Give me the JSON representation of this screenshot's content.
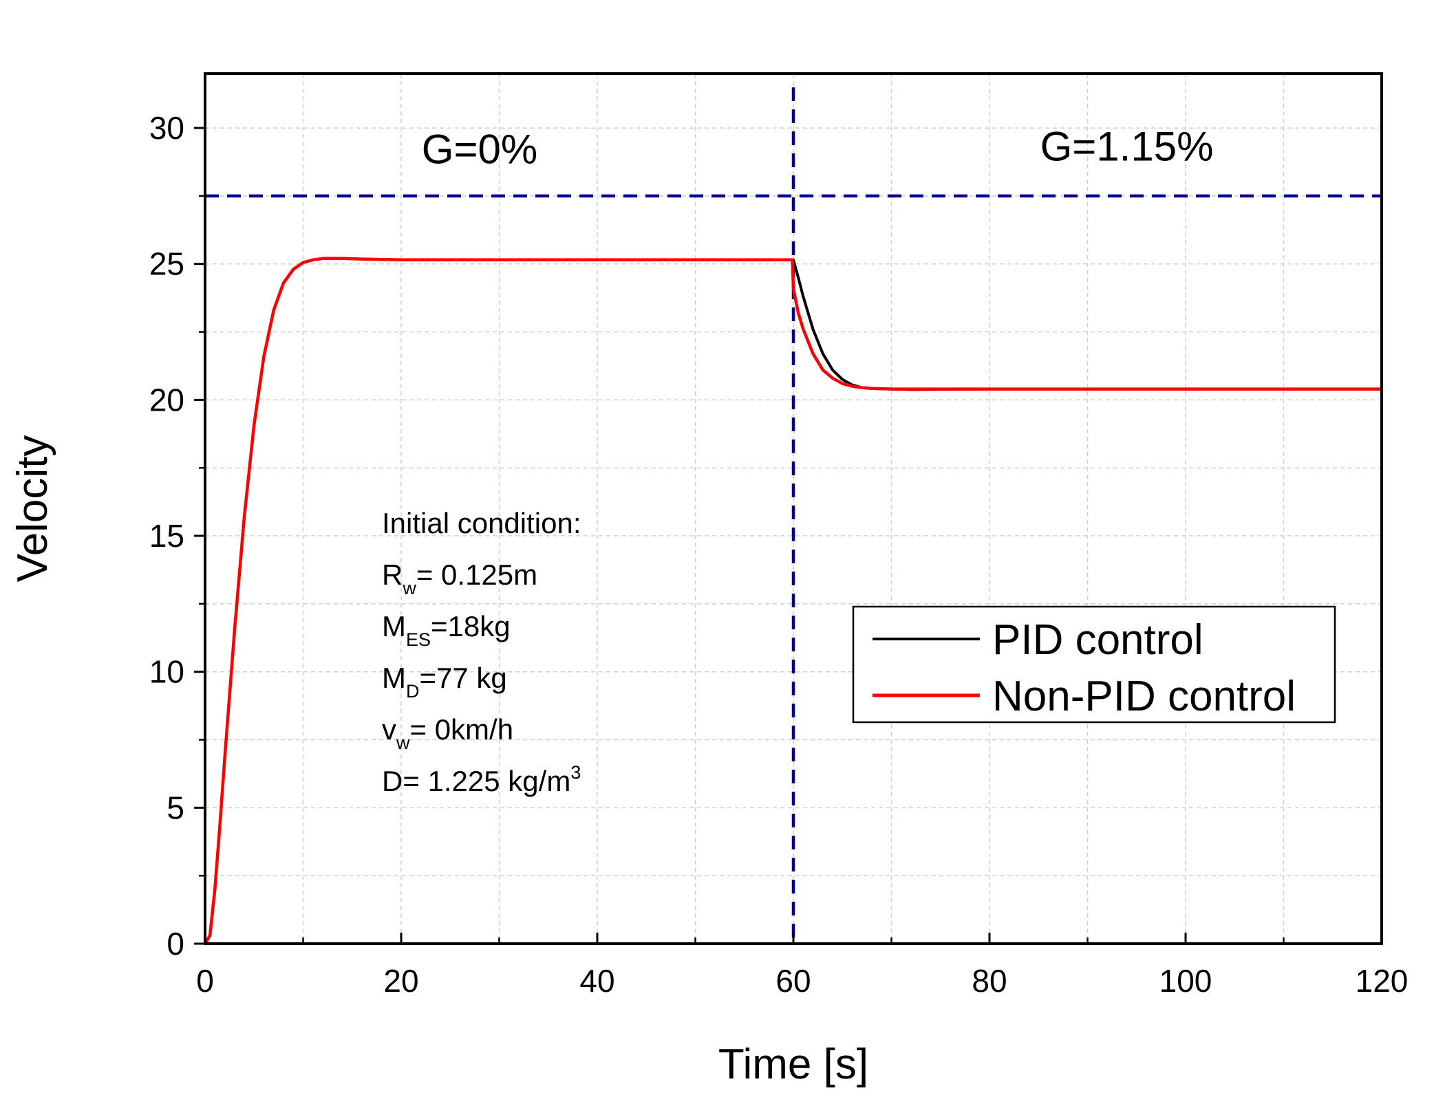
{
  "chart_data": {
    "type": "line",
    "title": "",
    "xlabel": "Time [s]",
    "ylabel": "Velocity",
    "xlim": [
      0,
      120
    ],
    "ylim": [
      0,
      32
    ],
    "x_ticks": [
      0,
      20,
      40,
      60,
      80,
      100,
      120
    ],
    "y_ticks": [
      0,
      5,
      10,
      15,
      20,
      25,
      30
    ],
    "x_tick_labels": [
      "0",
      "20",
      "40",
      "60",
      "80",
      "100",
      "120"
    ],
    "y_tick_labels": [
      "0",
      "5",
      "10",
      "15",
      "20",
      "25",
      "30"
    ],
    "grid": true,
    "series": [
      {
        "name": "PID control",
        "color": "#000000",
        "x": [
          0,
          0.5,
          1,
          1.5,
          2,
          3,
          4,
          5,
          6,
          7,
          8,
          9,
          10,
          11,
          12,
          13,
          14,
          16,
          20,
          30,
          40,
          50,
          59.9,
          60,
          60.5,
          61,
          62,
          63,
          64,
          65,
          66,
          67,
          68,
          70,
          72,
          80,
          90,
          100,
          110,
          120
        ],
        "y": [
          0,
          0.3,
          2.0,
          4.3,
          6.8,
          11.5,
          15.7,
          19.1,
          21.6,
          23.3,
          24.3,
          24.8,
          25.05,
          25.15,
          25.2,
          25.2,
          25.2,
          25.18,
          25.15,
          25.15,
          25.15,
          25.15,
          25.15,
          25.15,
          24.5,
          23.8,
          22.6,
          21.7,
          21.1,
          20.75,
          20.55,
          20.45,
          20.42,
          20.4,
          20.38,
          20.4,
          20.4,
          20.4,
          20.4,
          20.4
        ]
      },
      {
        "name": "Non-PID control",
        "color": "#ff0000",
        "x": [
          0,
          0.5,
          1,
          1.5,
          2,
          3,
          4,
          5,
          6,
          7,
          8,
          9,
          10,
          11,
          12,
          13,
          14,
          16,
          20,
          30,
          40,
          50,
          59.9,
          60,
          60.5,
          61,
          62,
          63,
          64,
          65,
          66,
          67,
          68,
          70,
          72,
          80,
          90,
          100,
          110,
          120
        ],
        "y": [
          0,
          0.3,
          2.0,
          4.3,
          6.8,
          11.5,
          15.7,
          19.1,
          21.6,
          23.3,
          24.3,
          24.8,
          25.05,
          25.15,
          25.2,
          25.2,
          25.2,
          25.18,
          25.15,
          25.15,
          25.15,
          25.15,
          25.15,
          24.1,
          23.2,
          22.6,
          21.7,
          21.1,
          20.8,
          20.6,
          20.5,
          20.45,
          20.42,
          20.4,
          20.4,
          20.4,
          20.4,
          20.4,
          20.4,
          20.4
        ]
      }
    ],
    "reference_lines": [
      {
        "orientation": "horizontal",
        "value": 27.5,
        "color": "#000099",
        "style": "dashed"
      },
      {
        "orientation": "vertical",
        "value": 60,
        "color": "#000099",
        "style": "dashed"
      }
    ],
    "region_labels": [
      {
        "text": "G=0%",
        "x": 28,
        "y": 28.7
      },
      {
        "text": "G=1.15%",
        "x": 94,
        "y": 28.8
      }
    ],
    "legend": {
      "position": "center-right",
      "entries": [
        "PID control",
        "Non-PID control"
      ]
    },
    "annotation": {
      "position": "middle-left",
      "lines": [
        {
          "id": "heading",
          "parts": [
            {
              "t": "Initial condition:"
            }
          ]
        },
        {
          "id": "rw",
          "parts": [
            {
              "t": "R"
            },
            {
              "t": "w",
              "sub": true
            },
            {
              "t": "= 0.125m"
            }
          ]
        },
        {
          "id": "mes",
          "parts": [
            {
              "t": "M"
            },
            {
              "t": "ES",
              "sub": true
            },
            {
              "t": "=18kg"
            }
          ]
        },
        {
          "id": "md",
          "parts": [
            {
              "t": "M"
            },
            {
              "t": "D",
              "sub": true
            },
            {
              "t": "=77 kg"
            }
          ]
        },
        {
          "id": "vw",
          "parts": [
            {
              "t": "v"
            },
            {
              "t": "w",
              "sub": true
            },
            {
              "t": "= 0km/h"
            }
          ]
        },
        {
          "id": "density",
          "parts": [
            {
              "t": "D= 1.225 kg/m"
            },
            {
              "t": "3",
              "sup": true
            }
          ]
        }
      ]
    }
  }
}
